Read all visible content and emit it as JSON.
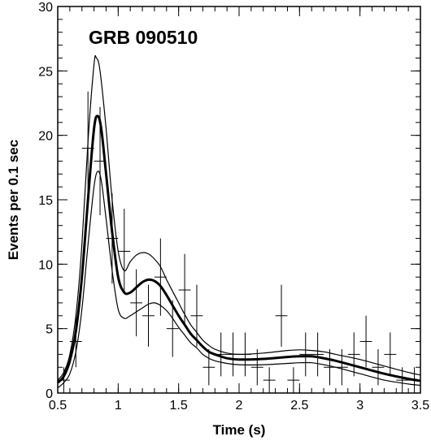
{
  "chart_data": {
    "type": "scatter",
    "title": "GRB 090510",
    "xlabel": "Time (s)",
    "ylabel": "Events per 0.1 sec",
    "xlim": [
      0.5,
      3.5
    ],
    "ylim": [
      0,
      30
    ],
    "xticks": [
      "0.5",
      "1",
      "1.5",
      "2",
      "2.5",
      "3",
      "3.5"
    ],
    "xtick_values": [
      0.5,
      1,
      1.5,
      2,
      2.5,
      3,
      3.5
    ],
    "yticks": [
      "0",
      "5",
      "10",
      "15",
      "20",
      "25",
      "30"
    ],
    "ytick_values": [
      0,
      5,
      10,
      15,
      20,
      25,
      30
    ],
    "grid": false,
    "data_points": [
      {
        "x": 0.55,
        "y": 1,
        "yerr": 1.0
      },
      {
        "x": 0.65,
        "y": 4,
        "yerr": 2.0
      },
      {
        "x": 0.75,
        "y": 19,
        "yerr": 4.4
      },
      {
        "x": 0.85,
        "y": 18,
        "yerr": 4.2
      },
      {
        "x": 0.95,
        "y": 12,
        "yerr": 3.5
      },
      {
        "x": 1.05,
        "y": 11,
        "yerr": 3.3
      },
      {
        "x": 1.15,
        "y": 7,
        "yerr": 2.6
      },
      {
        "x": 1.25,
        "y": 6,
        "yerr": 2.4
      },
      {
        "x": 1.35,
        "y": 9,
        "yerr": 3.0
      },
      {
        "x": 1.45,
        "y": 5,
        "yerr": 2.2
      },
      {
        "x": 1.55,
        "y": 8,
        "yerr": 2.8
      },
      {
        "x": 1.65,
        "y": 6,
        "yerr": 2.4
      },
      {
        "x": 1.75,
        "y": 2,
        "yerr": 1.4
      },
      {
        "x": 1.85,
        "y": 3,
        "yerr": 1.7
      },
      {
        "x": 1.95,
        "y": 3,
        "yerr": 1.7
      },
      {
        "x": 2.05,
        "y": 3,
        "yerr": 1.7
      },
      {
        "x": 2.15,
        "y": 2,
        "yerr": 1.4
      },
      {
        "x": 2.25,
        "y": 1,
        "yerr": 1.0
      },
      {
        "x": 2.35,
        "y": 6,
        "yerr": 2.4
      },
      {
        "x": 2.45,
        "y": 1,
        "yerr": 1.0
      },
      {
        "x": 2.55,
        "y": 3,
        "yerr": 1.7
      },
      {
        "x": 2.65,
        "y": 3,
        "yerr": 1.7
      },
      {
        "x": 2.75,
        "y": 2,
        "yerr": 1.4
      },
      {
        "x": 2.85,
        "y": 2,
        "yerr": 1.4
      },
      {
        "x": 2.95,
        "y": 3,
        "yerr": 1.7
      },
      {
        "x": 3.05,
        "y": 4,
        "yerr": 2.0
      },
      {
        "x": 3.15,
        "y": 2,
        "yerr": 1.4
      },
      {
        "x": 3.25,
        "y": 3,
        "yerr": 1.7
      },
      {
        "x": 3.35,
        "y": 1,
        "yerr": 1.0
      },
      {
        "x": 3.45,
        "y": 1,
        "yerr": 1.0
      }
    ],
    "fit_curve": [
      [
        0.5,
        0.8
      ],
      [
        0.55,
        1.3
      ],
      [
        0.6,
        2.5
      ],
      [
        0.65,
        4.8
      ],
      [
        0.7,
        9.0
      ],
      [
        0.75,
        15.0
      ],
      [
        0.8,
        20.5
      ],
      [
        0.83,
        21.5
      ],
      [
        0.86,
        20.5
      ],
      [
        0.9,
        17.0
      ],
      [
        0.95,
        12.5
      ],
      [
        1.0,
        9.0
      ],
      [
        1.05,
        7.8
      ],
      [
        1.1,
        7.8
      ],
      [
        1.15,
        8.2
      ],
      [
        1.2,
        8.6
      ],
      [
        1.25,
        8.8
      ],
      [
        1.3,
        8.7
      ],
      [
        1.35,
        8.3
      ],
      [
        1.4,
        7.6
      ],
      [
        1.45,
        6.8
      ],
      [
        1.5,
        6.0
      ],
      [
        1.55,
        5.3
      ],
      [
        1.6,
        4.6
      ],
      [
        1.65,
        4.1
      ],
      [
        1.7,
        3.6
      ],
      [
        1.75,
        3.2
      ],
      [
        1.8,
        3.0
      ],
      [
        1.9,
        2.7
      ],
      [
        2.0,
        2.6
      ],
      [
        2.2,
        2.65
      ],
      [
        2.4,
        2.8
      ],
      [
        2.5,
        2.85
      ],
      [
        2.6,
        2.85
      ],
      [
        2.7,
        2.7
      ],
      [
        2.8,
        2.5
      ],
      [
        3.0,
        2.0
      ],
      [
        3.2,
        1.5
      ],
      [
        3.4,
        1.1
      ],
      [
        3.5,
        0.95
      ]
    ],
    "upper_band": [
      [
        0.5,
        1.0
      ],
      [
        0.55,
        1.6
      ],
      [
        0.6,
        3.0
      ],
      [
        0.65,
        6.0
      ],
      [
        0.7,
        11.5
      ],
      [
        0.75,
        19.5
      ],
      [
        0.8,
        25.5
      ],
      [
        0.82,
        26.0
      ],
      [
        0.85,
        25.0
      ],
      [
        0.9,
        20.5
      ],
      [
        0.95,
        15.0
      ],
      [
        1.0,
        11.0
      ],
      [
        1.05,
        9.5
      ],
      [
        1.1,
        10.2
      ],
      [
        1.15,
        10.7
      ],
      [
        1.2,
        10.9
      ],
      [
        1.25,
        10.8
      ],
      [
        1.3,
        10.4
      ],
      [
        1.35,
        9.8
      ],
      [
        1.4,
        8.8
      ],
      [
        1.45,
        7.9
      ],
      [
        1.5,
        7.0
      ],
      [
        1.55,
        6.1
      ],
      [
        1.6,
        5.3
      ],
      [
        1.65,
        4.7
      ],
      [
        1.7,
        4.1
      ],
      [
        1.75,
        3.7
      ],
      [
        1.8,
        3.4
      ],
      [
        1.9,
        3.1
      ],
      [
        2.0,
        3.0
      ],
      [
        2.2,
        3.1
      ],
      [
        2.4,
        3.3
      ],
      [
        2.5,
        3.35
      ],
      [
        2.6,
        3.3
      ],
      [
        2.7,
        3.2
      ],
      [
        2.8,
        3.0
      ],
      [
        3.0,
        2.6
      ],
      [
        3.2,
        2.1
      ],
      [
        3.4,
        1.6
      ],
      [
        3.5,
        1.4
      ]
    ],
    "lower_band": [
      [
        0.5,
        0.4
      ],
      [
        0.55,
        0.8
      ],
      [
        0.6,
        1.5
      ],
      [
        0.65,
        3.2
      ],
      [
        0.7,
        6.5
      ],
      [
        0.75,
        11.5
      ],
      [
        0.8,
        16.0
      ],
      [
        0.83,
        17.2
      ],
      [
        0.86,
        16.5
      ],
      [
        0.9,
        13.5
      ],
      [
        0.95,
        9.5
      ],
      [
        1.0,
        6.5
      ],
      [
        1.05,
        5.8
      ],
      [
        1.1,
        6.0
      ],
      [
        1.15,
        6.3
      ],
      [
        1.2,
        6.6
      ],
      [
        1.25,
        6.9
      ],
      [
        1.3,
        7.0
      ],
      [
        1.35,
        6.8
      ],
      [
        1.4,
        6.4
      ],
      [
        1.45,
        5.8
      ],
      [
        1.5,
        5.1
      ],
      [
        1.55,
        4.5
      ],
      [
        1.6,
        3.9
      ],
      [
        1.65,
        3.5
      ],
      [
        1.7,
        3.0
      ],
      [
        1.75,
        2.7
      ],
      [
        1.8,
        2.5
      ],
      [
        1.9,
        2.3
      ],
      [
        2.0,
        2.2
      ],
      [
        2.2,
        2.2
      ],
      [
        2.4,
        2.3
      ],
      [
        2.5,
        2.35
      ],
      [
        2.6,
        2.35
      ],
      [
        2.7,
        2.2
      ],
      [
        2.8,
        2.0
      ],
      [
        3.0,
        1.5
      ],
      [
        3.2,
        1.0
      ],
      [
        3.4,
        0.7
      ],
      [
        3.5,
        0.6
      ]
    ]
  }
}
